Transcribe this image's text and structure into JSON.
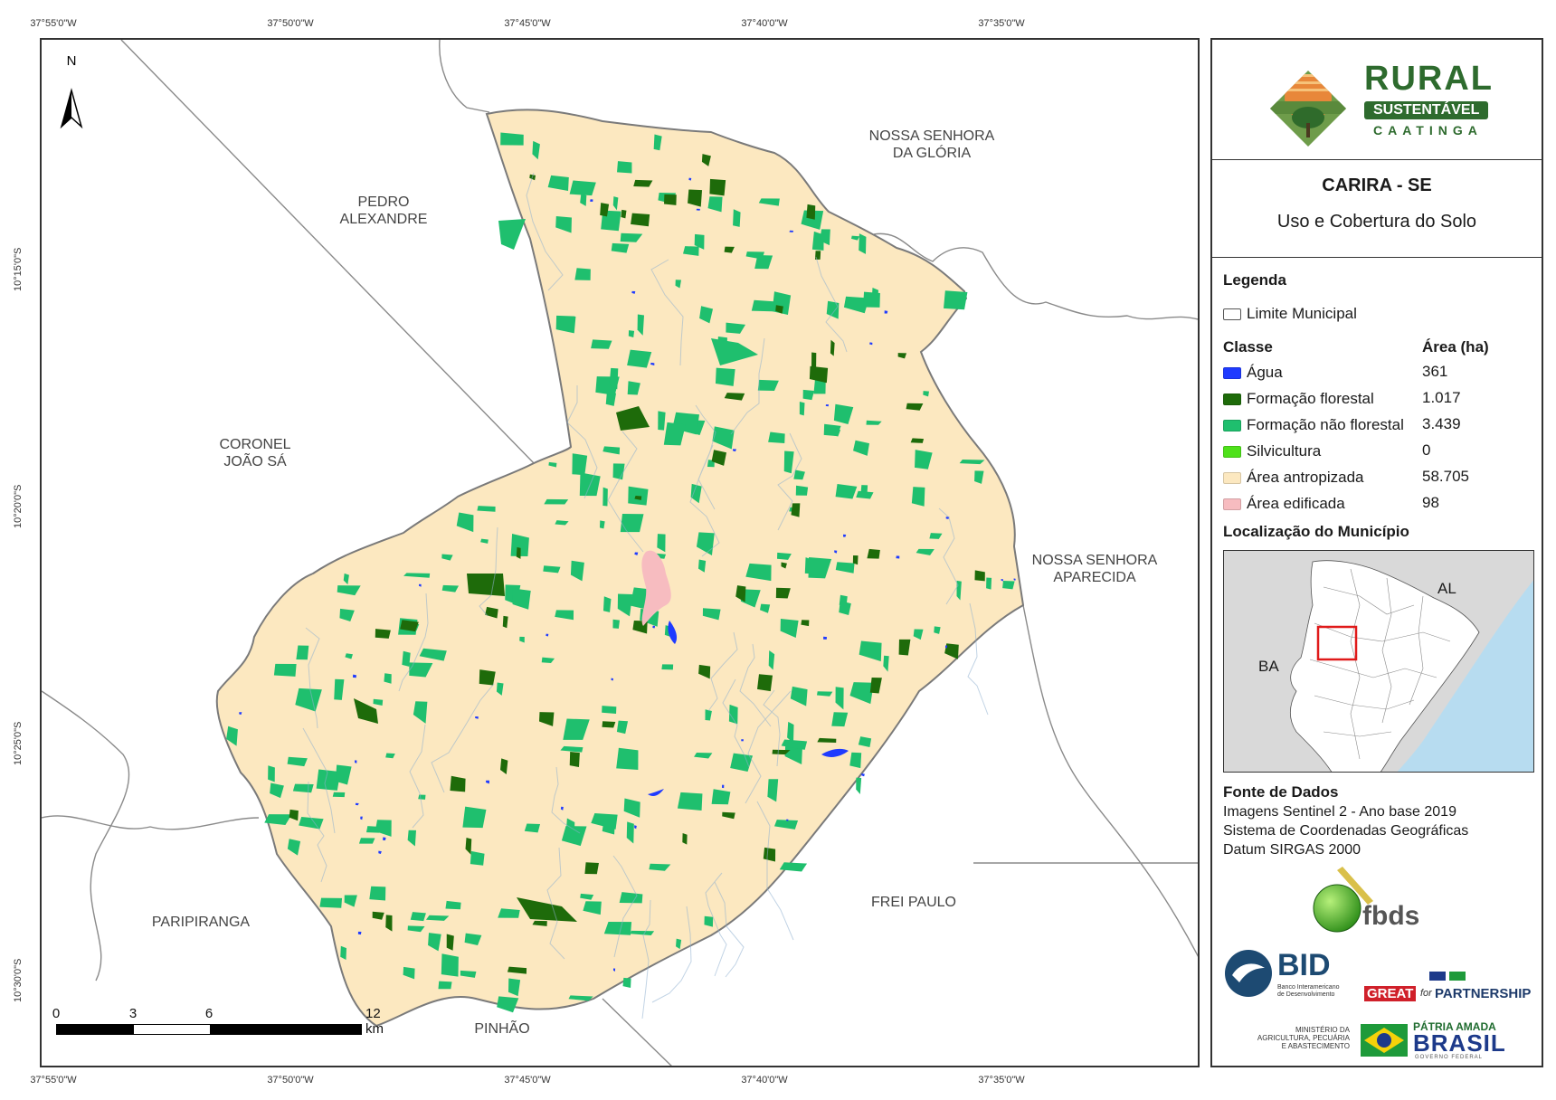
{
  "grid": {
    "lon_labels": [
      "37°55'0\"W",
      "37°50'0\"W",
      "37°45'0\"W",
      "37°40'0\"W",
      "37°35'0\"W"
    ],
    "lat_labels": [
      "10°15'0\"S",
      "10°20'0\"S",
      "10°25'0\"S",
      "10°30'0\"S"
    ]
  },
  "map": {
    "north_arrow_label": "N",
    "neighbors": [
      "PEDRO\nALEXANDRE",
      "NOSSA SENHORA\nDA GLÓRIA",
      "CORONEL\nJOÃO SÁ",
      "NOSSA SENHORA\nAPARECIDA",
      "PARIPIRANGA",
      "FREI PAULO",
      "PINHÃO"
    ],
    "scale_bar": {
      "ticks": [
        "0",
        "3",
        "6",
        "12 km"
      ]
    },
    "colors": {
      "municipality_fill": "#fce8c0",
      "outline": "#8a8a8a",
      "agua": "#1f3bff",
      "formacao_florestal": "#1e6b0a",
      "formacao_nao_florestal": "#1fbf6e",
      "silvicultura": "#4ee11a",
      "area_antropizada": "#fce8c0",
      "area_edificada": "#f7bcc0"
    }
  },
  "panel": {
    "logo": {
      "rural": "RURAL",
      "sustentavel": "SUSTENTÁVEL",
      "caatinga": "CAATINGA"
    },
    "title": "CARIRA - SE",
    "subtitle": "Uso e Cobertura do Solo",
    "legend_heading": "Legenda",
    "limit_label": "Limite Municipal",
    "class_heading": "Classe",
    "area_heading": "Área (ha)",
    "classes": [
      {
        "name": "Água",
        "area": "361",
        "color": "#1f3bff"
      },
      {
        "name": "Formação florestal",
        "area": "1.017",
        "color": "#1e6b0a"
      },
      {
        "name": "Formação não florestal",
        "area": "3.439",
        "color": "#1fbf6e"
      },
      {
        "name": "Silvicultura",
        "area": "0",
        "color": "#4ee11a"
      },
      {
        "name": "Área antropizada",
        "area": "58.705",
        "color": "#fce8c0"
      },
      {
        "name": "Área edificada",
        "area": "98",
        "color": "#f7bcc0"
      }
    ],
    "location_heading": "Localização do Município",
    "inset": {
      "label_al": "AL",
      "label_ba": "BA",
      "sea_color": "#b7dcf0",
      "land_color": "#d9d9d9",
      "highlight_color": "#e01a1a"
    },
    "source_heading": "Fonte de Dados",
    "source_lines": [
      "Imagens Sentinel 2 - Ano base 2019",
      "Sistema de Coordenadas Geográficas",
      "Datum SIRGAS 2000"
    ],
    "partners": {
      "fbds": "fbds",
      "bid": "BID",
      "bid_sub": "Banco Interamericano\nde Desenvolvimento",
      "great": "GREAT",
      "for": "for",
      "partnership": "PARTNERSHIP",
      "ministerio": "MINISTÉRIO DA\nAGRICULTURA, PECUÁRIA\nE ABASTECIMENTO",
      "patria": "PÁTRIA AMADA",
      "brasil": "BRASIL",
      "governo": "GOVERNO FEDERAL"
    }
  }
}
